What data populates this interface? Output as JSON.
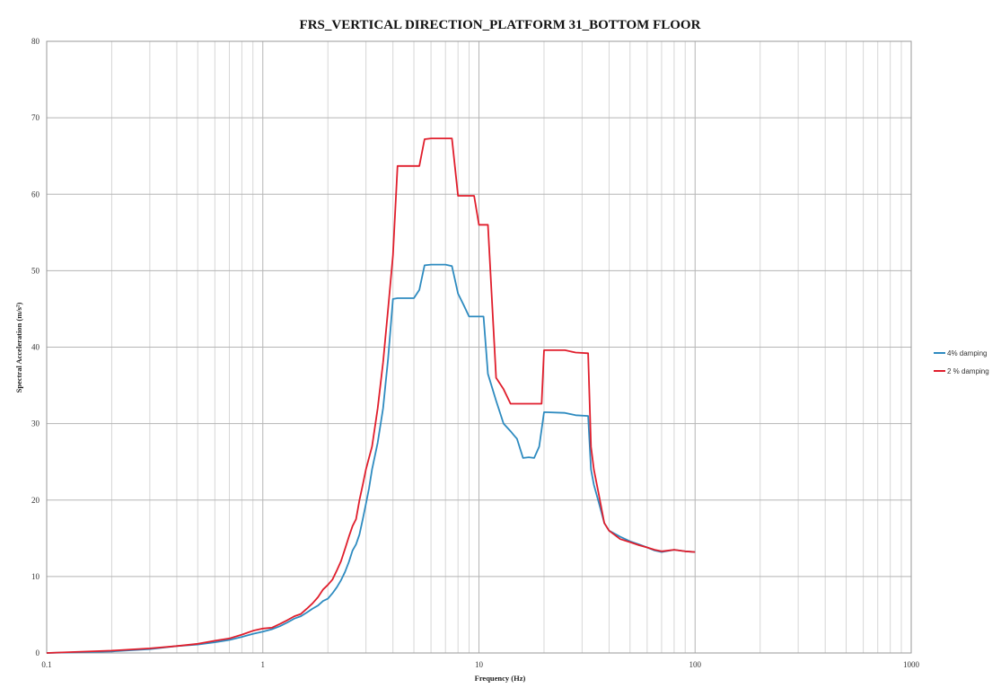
{
  "chart_data": {
    "type": "line",
    "title": "FRS_VERTICAL DIRECTION_PLATFORM 31_BOTTOM FLOOR",
    "xlabel": "Frequency (Hz)",
    "ylabel": "Spectral Acceleration (m/s²)",
    "x_scale": "log",
    "xlim": [
      0.1,
      1000
    ],
    "ylim": [
      0,
      80
    ],
    "x_ticks": [
      "0.1",
      "1",
      "10",
      "100",
      "1000"
    ],
    "y_ticks": [
      "0",
      "10",
      "20",
      "30",
      "40",
      "50",
      "60",
      "70",
      "80"
    ],
    "grid": true,
    "legend_position": "right",
    "series": [
      {
        "name": "4% damping",
        "color": "#2e8bc0",
        "x": [
          0.1,
          0.2,
          0.3,
          0.4,
          0.5,
          0.6,
          0.7,
          0.8,
          0.9,
          1.0,
          1.1,
          1.2,
          1.3,
          1.4,
          1.5,
          1.6,
          1.7,
          1.8,
          1.9,
          2.0,
          2.1,
          2.2,
          2.3,
          2.4,
          2.5,
          2.6,
          2.7,
          2.8,
          2.9,
          3.0,
          3.1,
          3.2,
          3.4,
          3.6,
          3.8,
          4.0,
          4.2,
          5.0,
          5.3,
          5.6,
          6.0,
          7.0,
          7.5,
          8.0,
          8.5,
          9.0,
          9.5,
          10.0,
          10.5,
          11.0,
          12.0,
          13.0,
          14.0,
          14.5,
          15.0,
          16.0,
          17.0,
          18.0,
          19.0,
          20.0,
          25.0,
          28.0,
          32.0,
          33.0,
          34.0,
          36.0,
          38.0,
          40.0,
          45.0,
          50.0,
          55.0,
          60.0,
          65.0,
          70.0,
          80.0,
          90.0,
          100.0
        ],
        "values": [
          0.0,
          0.2,
          0.5,
          0.9,
          1.1,
          1.4,
          1.7,
          2.1,
          2.5,
          2.8,
          3.1,
          3.5,
          4.0,
          4.5,
          4.8,
          5.3,
          5.8,
          6.2,
          6.8,
          7.1,
          7.8,
          8.6,
          9.5,
          10.6,
          11.9,
          13.4,
          14.2,
          15.5,
          17.5,
          19.5,
          21.5,
          24.0,
          27.5,
          32.0,
          38.5,
          46.3,
          46.4,
          46.4,
          47.5,
          50.7,
          50.8,
          50.8,
          50.6,
          47.0,
          45.5,
          44.0,
          44.0,
          44.0,
          44.0,
          36.5,
          33.0,
          30.0,
          29.0,
          28.5,
          28.0,
          25.5,
          25.6,
          25.5,
          27.0,
          31.5,
          31.4,
          31.1,
          31.0,
          24.0,
          22.0,
          19.5,
          17.0,
          16.0,
          15.2,
          14.6,
          14.2,
          13.8,
          13.4,
          13.2,
          13.5,
          13.3,
          13.2
        ]
      },
      {
        "name": "2 % damping",
        "color": "#e01e2c",
        "x": [
          0.1,
          0.2,
          0.3,
          0.4,
          0.5,
          0.6,
          0.7,
          0.8,
          0.9,
          1.0,
          1.1,
          1.2,
          1.3,
          1.4,
          1.5,
          1.6,
          1.7,
          1.8,
          1.9,
          2.0,
          2.1,
          2.2,
          2.3,
          2.4,
          2.5,
          2.6,
          2.7,
          2.8,
          2.9,
          3.0,
          3.1,
          3.2,
          3.4,
          3.6,
          3.8,
          4.0,
          4.2,
          5.0,
          5.3,
          5.6,
          6.0,
          7.0,
          7.5,
          8.0,
          8.5,
          9.0,
          9.5,
          10.0,
          10.5,
          11.0,
          12.0,
          13.0,
          14.0,
          16.0,
          18.0,
          19.5,
          20.0,
          25.0,
          28.0,
          32.0,
          33.0,
          34.0,
          36.0,
          38.0,
          40.0,
          45.0,
          50.0,
          55.0,
          60.0,
          65.0,
          70.0,
          80.0,
          90.0,
          100.0
        ],
        "values": [
          0.0,
          0.3,
          0.6,
          0.9,
          1.2,
          1.6,
          1.9,
          2.4,
          2.9,
          3.2,
          3.3,
          3.8,
          4.3,
          4.8,
          5.1,
          5.8,
          6.5,
          7.3,
          8.3,
          8.9,
          9.6,
          10.8,
          12.0,
          13.6,
          15.2,
          16.6,
          17.5,
          20.0,
          22.0,
          24.0,
          25.5,
          27.0,
          32.0,
          38.0,
          45.0,
          52.0,
          63.7,
          63.7,
          63.7,
          67.2,
          67.3,
          67.3,
          67.3,
          59.8,
          59.8,
          59.8,
          59.8,
          56.0,
          56.0,
          56.0,
          36.0,
          34.5,
          32.6,
          32.6,
          32.6,
          32.6,
          39.6,
          39.6,
          39.3,
          39.2,
          27.0,
          24.0,
          20.5,
          17.0,
          16.0,
          14.9,
          14.5,
          14.1,
          13.8,
          13.5,
          13.3,
          13.5,
          13.3,
          13.2
        ]
      }
    ]
  }
}
